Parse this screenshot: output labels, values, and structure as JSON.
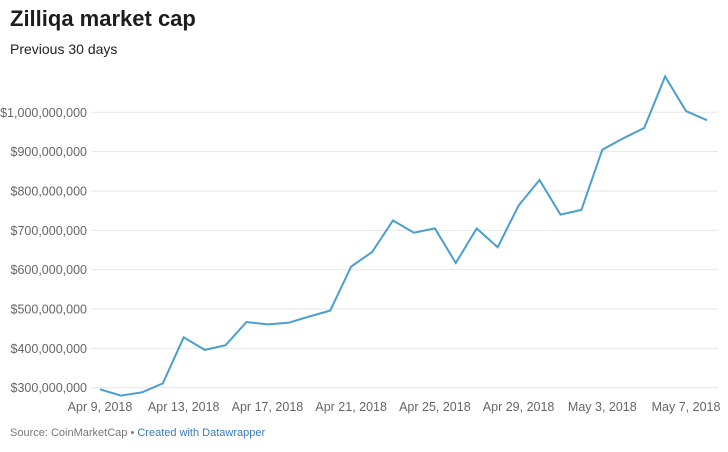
{
  "chart_data": {
    "type": "line",
    "title": "Zilliqa market cap",
    "subtitle": "Previous 30 days",
    "xlabel": "",
    "ylabel": "",
    "x": [
      "2018-04-09",
      "2018-04-10",
      "2018-04-11",
      "2018-04-12",
      "2018-04-13",
      "2018-04-14",
      "2018-04-15",
      "2018-04-16",
      "2018-04-17",
      "2018-04-18",
      "2018-04-19",
      "2018-04-20",
      "2018-04-21",
      "2018-04-22",
      "2018-04-23",
      "2018-04-24",
      "2018-04-25",
      "2018-04-26",
      "2018-04-27",
      "2018-04-28",
      "2018-04-29",
      "2018-04-30",
      "2018-05-01",
      "2018-05-02",
      "2018-05-03",
      "2018-05-04",
      "2018-05-05",
      "2018-05-06",
      "2018-05-07",
      "2018-05-08"
    ],
    "values": [
      296000000,
      280000000,
      288000000,
      311000000,
      428000000,
      396000000,
      408000000,
      467000000,
      461000000,
      465000000,
      481000000,
      496000000,
      608000000,
      645000000,
      725000000,
      694000000,
      705000000,
      617000000,
      705000000,
      657000000,
      763000000,
      828000000,
      740000000,
      752000000,
      905000000,
      934000000,
      960000000,
      1091000000,
      1003000000,
      980000000
    ],
    "ylim": [
      300000000,
      1000000000
    ],
    "y_ticks": [
      "$300,000,000",
      "$400,000,000",
      "$500,000,000",
      "$600,000,000",
      "$700,000,000",
      "$800,000,000",
      "$900,000,000",
      "$1,000,000,000"
    ],
    "y_tick_values": [
      300000000,
      400000000,
      500000000,
      600000000,
      700000000,
      800000000,
      900000000,
      1000000000
    ],
    "x_ticks": [
      "Apr 9, 2018",
      "Apr 13, 2018",
      "Apr 17, 2018",
      "Apr 21, 2018",
      "Apr 25, 2018",
      "Apr 29, 2018",
      "May 3, 2018",
      "May 7, 2018"
    ],
    "x_tick_index": [
      0,
      4,
      8,
      12,
      16,
      20,
      24,
      28
    ],
    "grid": true,
    "line_color": "#4a9fcf"
  },
  "footer": {
    "source": "Source: CoinMarketCap",
    "separator": " • ",
    "credit": "Created with Datawrapper"
  }
}
